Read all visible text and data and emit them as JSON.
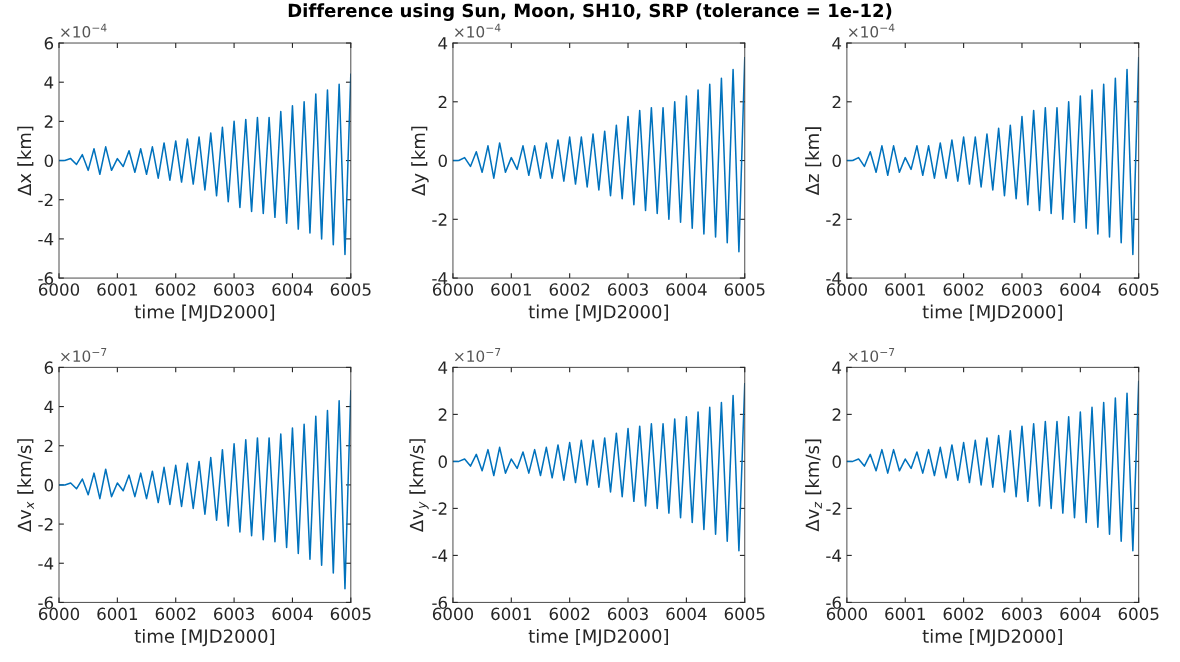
{
  "chart_data": [
    {
      "type": "line",
      "title": "Difference using Sun, Moon, SH10, SRP (tolerance = 1e-12)",
      "xlabel": "time [MJD2000]",
      "ylabel": "Δx [km]",
      "annotations": [
        "×10$^{−4}$"
      ],
      "x": [
        6000,
        6000.1,
        6000.2,
        6000.3,
        6000.4,
        6000.5,
        6000.6,
        6000.7,
        6000.8,
        6000.9,
        6001,
        6001.1,
        6001.2,
        6001.3,
        6001.4,
        6001.5,
        6001.6,
        6001.7,
        6001.8,
        6001.9,
        6002,
        6002.1,
        6002.2,
        6002.3,
        6002.4,
        6002.5,
        6002.6,
        6002.7,
        6002.8,
        6002.9,
        6003,
        6003.1,
        6003.2,
        6003.3,
        6003.4,
        6003.5,
        6003.6,
        6003.7,
        6003.8,
        6003.9,
        6004,
        6004.1,
        6004.2,
        6004.3,
        6004.4,
        6004.5,
        6004.6,
        6004.7,
        6004.8,
        6004.9,
        6005
      ],
      "series": [
        {
          "color": "#0072bd",
          "values": [
            0,
            0,
            0.1,
            -0.2,
            0.3,
            -0.5,
            0.6,
            -0.7,
            0.7,
            -0.5,
            0.1,
            -0.3,
            0.5,
            -0.6,
            0.6,
            -0.7,
            0.7,
            -0.9,
            0.9,
            -1.0,
            1.0,
            -1.1,
            1.1,
            -1.2,
            1.2,
            -1.5,
            1.4,
            -1.8,
            1.7,
            -2.1,
            2.0,
            -2.4,
            2.1,
            -2.6,
            2.2,
            -2.7,
            2.2,
            -2.9,
            2.5,
            -3.2,
            2.8,
            -3.5,
            3.0,
            -3.7,
            3.4,
            -4.0,
            3.6,
            -4.3,
            3.9,
            -4.8,
            4.4
          ]
        }
      ],
      "xlim": [
        6000,
        6005
      ],
      "xticks": [
        6000,
        6001,
        6002,
        6003,
        6004,
        6005
      ],
      "ylim": [
        -6,
        6
      ],
      "yticks": [
        -6,
        -4,
        -2,
        0,
        2,
        4,
        6
      ]
    },
    {
      "type": "line",
      "xlabel": "time [MJD2000]",
      "ylabel": "Δy [km]",
      "annotations": [
        "×10$^{−4}$"
      ],
      "x": [
        6000,
        6000.1,
        6000.2,
        6000.3,
        6000.4,
        6000.5,
        6000.6,
        6000.7,
        6000.8,
        6000.9,
        6001,
        6001.1,
        6001.2,
        6001.3,
        6001.4,
        6001.5,
        6001.6,
        6001.7,
        6001.8,
        6001.9,
        6002,
        6002.1,
        6002.2,
        6002.3,
        6002.4,
        6002.5,
        6002.6,
        6002.7,
        6002.8,
        6002.9,
        6003,
        6003.1,
        6003.2,
        6003.3,
        6003.4,
        6003.5,
        6003.6,
        6003.7,
        6003.8,
        6003.9,
        6004,
        6004.1,
        6004.2,
        6004.3,
        6004.4,
        6004.5,
        6004.6,
        6004.7,
        6004.8,
        6004.9,
        6005
      ],
      "series": [
        {
          "color": "#0072bd",
          "values": [
            0,
            0,
            0.1,
            -0.2,
            0.3,
            -0.4,
            0.5,
            -0.6,
            0.6,
            -0.4,
            0.1,
            -0.3,
            0.5,
            -0.5,
            0.5,
            -0.6,
            0.6,
            -0.6,
            0.7,
            -0.7,
            0.8,
            -0.8,
            0.8,
            -0.9,
            0.9,
            -1.0,
            1.0,
            -1.2,
            1.2,
            -1.3,
            1.5,
            -1.5,
            1.7,
            -1.7,
            1.8,
            -1.8,
            1.8,
            -2.0,
            2.0,
            -2.1,
            2.2,
            -2.3,
            2.4,
            -2.5,
            2.6,
            -2.6,
            2.8,
            -2.8,
            3.1,
            -3.1,
            3.5
          ]
        }
      ],
      "xlim": [
        6000,
        6005
      ],
      "xticks": [
        6000,
        6001,
        6002,
        6003,
        6004,
        6005
      ],
      "ylim": [
        -4,
        4
      ],
      "yticks": [
        -4,
        -2,
        0,
        2,
        4
      ]
    },
    {
      "type": "line",
      "xlabel": "time [MJD2000]",
      "ylabel": "Δz [km]",
      "annotations": [
        "×10$^{−4}$"
      ],
      "x": [
        6000,
        6000.1,
        6000.2,
        6000.3,
        6000.4,
        6000.5,
        6000.6,
        6000.7,
        6000.8,
        6000.9,
        6001,
        6001.1,
        6001.2,
        6001.3,
        6001.4,
        6001.5,
        6001.6,
        6001.7,
        6001.8,
        6001.9,
        6002,
        6002.1,
        6002.2,
        6002.3,
        6002.4,
        6002.5,
        6002.6,
        6002.7,
        6002.8,
        6002.9,
        6003,
        6003.1,
        6003.2,
        6003.3,
        6003.4,
        6003.5,
        6003.6,
        6003.7,
        6003.8,
        6003.9,
        6004,
        6004.1,
        6004.2,
        6004.3,
        6004.4,
        6004.5,
        6004.6,
        6004.7,
        6004.8,
        6004.9,
        6005
      ],
      "series": [
        {
          "color": "#0072bd",
          "values": [
            0,
            0,
            0.1,
            -0.2,
            0.3,
            -0.4,
            0.5,
            -0.5,
            0.5,
            -0.4,
            0.1,
            -0.3,
            0.5,
            -0.5,
            0.5,
            -0.6,
            0.6,
            -0.6,
            0.7,
            -0.7,
            0.8,
            -0.8,
            0.8,
            -0.9,
            0.9,
            -1.0,
            1.1,
            -1.2,
            1.2,
            -1.3,
            1.5,
            -1.5,
            1.7,
            -1.7,
            1.8,
            -1.8,
            1.8,
            -2.0,
            2.0,
            -2.1,
            2.2,
            -2.3,
            2.4,
            -2.5,
            2.6,
            -2.6,
            2.8,
            -2.8,
            3.1,
            -3.2,
            3.5
          ]
        }
      ],
      "xlim": [
        6000,
        6005
      ],
      "xticks": [
        6000,
        6001,
        6002,
        6003,
        6004,
        6005
      ],
      "ylim": [
        -4,
        4
      ],
      "yticks": [
        -4,
        -2,
        0,
        2,
        4
      ]
    },
    {
      "type": "line",
      "xlabel": "time [MJD2000]",
      "ylabel": "Δv$_{x}$ [km/s]",
      "annotations": [
        "×10$^{−7}$"
      ],
      "x": [
        6000,
        6000.1,
        6000.2,
        6000.3,
        6000.4,
        6000.5,
        6000.6,
        6000.7,
        6000.8,
        6000.9,
        6001,
        6001.1,
        6001.2,
        6001.3,
        6001.4,
        6001.5,
        6001.6,
        6001.7,
        6001.8,
        6001.9,
        6002,
        6002.1,
        6002.2,
        6002.3,
        6002.4,
        6002.5,
        6002.6,
        6002.7,
        6002.8,
        6002.9,
        6003,
        6003.1,
        6003.2,
        6003.3,
        6003.4,
        6003.5,
        6003.6,
        6003.7,
        6003.8,
        6003.9,
        6004,
        6004.1,
        6004.2,
        6004.3,
        6004.4,
        6004.5,
        6004.6,
        6004.7,
        6004.8,
        6004.9,
        6005
      ],
      "series": [
        {
          "color": "#0072bd",
          "values": [
            0,
            0,
            0.1,
            -0.2,
            0.3,
            -0.5,
            0.6,
            -0.7,
            0.8,
            -0.6,
            0.1,
            -0.3,
            0.5,
            -0.6,
            0.6,
            -0.7,
            0.7,
            -0.9,
            0.9,
            -1.0,
            1.0,
            -1.1,
            1.1,
            -1.2,
            1.2,
            -1.5,
            1.4,
            -1.8,
            1.8,
            -2.1,
            2.1,
            -2.4,
            2.3,
            -2.6,
            2.4,
            -2.8,
            2.4,
            -2.9,
            2.6,
            -3.2,
            2.9,
            -3.5,
            3.1,
            -3.8,
            3.5,
            -4.1,
            3.8,
            -4.5,
            4.3,
            -5.3,
            4.8
          ]
        }
      ],
      "xlim": [
        6000,
        6005
      ],
      "xticks": [
        6000,
        6001,
        6002,
        6003,
        6004,
        6005
      ],
      "ylim": [
        -6,
        6
      ],
      "yticks": [
        -6,
        -4,
        -2,
        0,
        2,
        4,
        6
      ]
    },
    {
      "type": "line",
      "xlabel": "time [MJD2000]",
      "ylabel": "Δv$_{y}$ [km/s]",
      "annotations": [
        "×10$^{−7}$"
      ],
      "x": [
        6000,
        6000.1,
        6000.2,
        6000.3,
        6000.4,
        6000.5,
        6000.6,
        6000.7,
        6000.8,
        6000.9,
        6001,
        6001.1,
        6001.2,
        6001.3,
        6001.4,
        6001.5,
        6001.6,
        6001.7,
        6001.8,
        6001.9,
        6002,
        6002.1,
        6002.2,
        6002.3,
        6002.4,
        6002.5,
        6002.6,
        6002.7,
        6002.8,
        6002.9,
        6003,
        6003.1,
        6003.2,
        6003.3,
        6003.4,
        6003.5,
        6003.6,
        6003.7,
        6003.8,
        6003.9,
        6004,
        6004.1,
        6004.2,
        6004.3,
        6004.4,
        6004.5,
        6004.6,
        6004.7,
        6004.8,
        6004.9,
        6005
      ],
      "series": [
        {
          "color": "#0072bd",
          "values": [
            0,
            0,
            0.1,
            -0.2,
            0.3,
            -0.4,
            0.5,
            -0.6,
            0.6,
            -0.5,
            0.1,
            -0.3,
            0.4,
            -0.5,
            0.5,
            -0.6,
            0.6,
            -0.7,
            0.7,
            -0.8,
            0.8,
            -0.9,
            0.9,
            -1.0,
            0.9,
            -1.1,
            1.0,
            -1.3,
            1.2,
            -1.5,
            1.4,
            -1.7,
            1.5,
            -1.9,
            1.6,
            -2.0,
            1.6,
            -2.2,
            1.8,
            -2.4,
            1.9,
            -2.6,
            2.1,
            -2.9,
            2.3,
            -3.1,
            2.5,
            -3.4,
            2.8,
            -3.8,
            3.3
          ]
        }
      ],
      "xlim": [
        6000,
        6005
      ],
      "xticks": [
        6000,
        6001,
        6002,
        6003,
        6004,
        6005
      ],
      "ylim": [
        -6,
        4
      ],
      "yticks": [
        -6,
        -4,
        -2,
        0,
        2,
        4
      ]
    },
    {
      "type": "line",
      "xlabel": "time [MJD2000]",
      "ylabel": "Δv$_{z}$ [km/s]",
      "annotations": [
        "×10$^{−7}$"
      ],
      "x": [
        6000,
        6000.1,
        6000.2,
        6000.3,
        6000.4,
        6000.5,
        6000.6,
        6000.7,
        6000.8,
        6000.9,
        6001,
        6001.1,
        6001.2,
        6001.3,
        6001.4,
        6001.5,
        6001.6,
        6001.7,
        6001.8,
        6001.9,
        6002,
        6002.1,
        6002.2,
        6002.3,
        6002.4,
        6002.5,
        6002.6,
        6002.7,
        6002.8,
        6002.9,
        6003,
        6003.1,
        6003.2,
        6003.3,
        6003.4,
        6003.5,
        6003.6,
        6003.7,
        6003.8,
        6003.9,
        6004,
        6004.1,
        6004.2,
        6004.3,
        6004.4,
        6004.5,
        6004.6,
        6004.7,
        6004.8,
        6004.9,
        6005
      ],
      "series": [
        {
          "color": "#0072bd",
          "values": [
            0,
            0,
            0.1,
            -0.2,
            0.3,
            -0.4,
            0.5,
            -0.5,
            0.5,
            -0.4,
            0.1,
            -0.3,
            0.4,
            -0.5,
            0.5,
            -0.6,
            0.6,
            -0.7,
            0.7,
            -0.8,
            0.8,
            -0.9,
            0.9,
            -1.0,
            1.0,
            -1.1,
            1.1,
            -1.3,
            1.3,
            -1.5,
            1.5,
            -1.7,
            1.6,
            -1.9,
            1.7,
            -2.0,
            1.7,
            -2.2,
            1.9,
            -2.4,
            2.1,
            -2.6,
            2.3,
            -2.8,
            2.5,
            -3.1,
            2.7,
            -3.4,
            2.9,
            -3.8,
            3.4
          ]
        }
      ],
      "xlim": [
        6000,
        6005
      ],
      "xticks": [
        6000,
        6001,
        6002,
        6003,
        6004,
        6005
      ],
      "ylim": [
        -6,
        4
      ],
      "yticks": [
        -6,
        -4,
        -2,
        0,
        2,
        4
      ]
    }
  ]
}
